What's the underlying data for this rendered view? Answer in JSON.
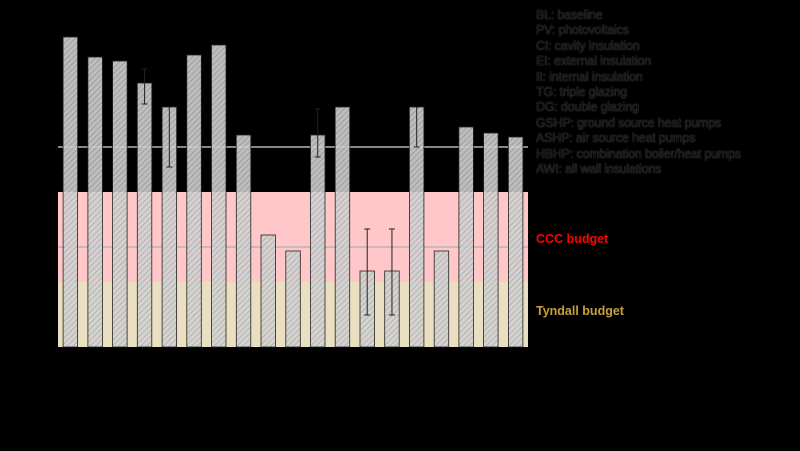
{
  "chart_data": {
    "type": "bar",
    "title": "",
    "xlabel": "",
    "ylabel": "",
    "ylim": [
      0,
      320
    ],
    "grid_values": [
      100,
      200
    ],
    "values": [
      310,
      290,
      286,
      264,
      240,
      292,
      302,
      212,
      112,
      96,
      212,
      240,
      76,
      76,
      240,
      96,
      220,
      214,
      210
    ],
    "error_bars": [
      {
        "index": 3,
        "low": 243,
        "high": 278
      },
      {
        "index": 4,
        "low": 180,
        "high": 240
      },
      {
        "index": 10,
        "low": 190,
        "high": 238
      },
      {
        "index": 12,
        "low": 32,
        "high": 118
      },
      {
        "index": 13,
        "low": 32,
        "high": 118
      },
      {
        "index": 14,
        "low": 200,
        "high": 240
      }
    ],
    "bands": [
      {
        "name": "CCC budget",
        "from": 65,
        "to": 155,
        "color": "#ffc7c8",
        "label_color": "#ff0000"
      },
      {
        "name": "Tyndall budget",
        "from": 0,
        "to": 65,
        "color": "#eadfc0",
        "label_color": "#c9a038"
      }
    ],
    "legend": [
      "BL: baseline",
      "PV: photovoltaics",
      "CI: cavity insulation",
      "EI: external insulation",
      "II: internal insulation",
      "TG: triple glazing",
      "DG: double glazing",
      "GSHP: ground source heat pumps",
      "ASHP: air source heat pumps",
      "HBHP: combination boiler/heat pumps",
      "AWI: all wall insulations"
    ],
    "colors": {
      "bar_fill": "#d2d2d2",
      "bar_hatch": "#9a9a9a",
      "bar_stroke": "#222222",
      "grid": "#b5b5b5",
      "background": "#000000"
    }
  }
}
